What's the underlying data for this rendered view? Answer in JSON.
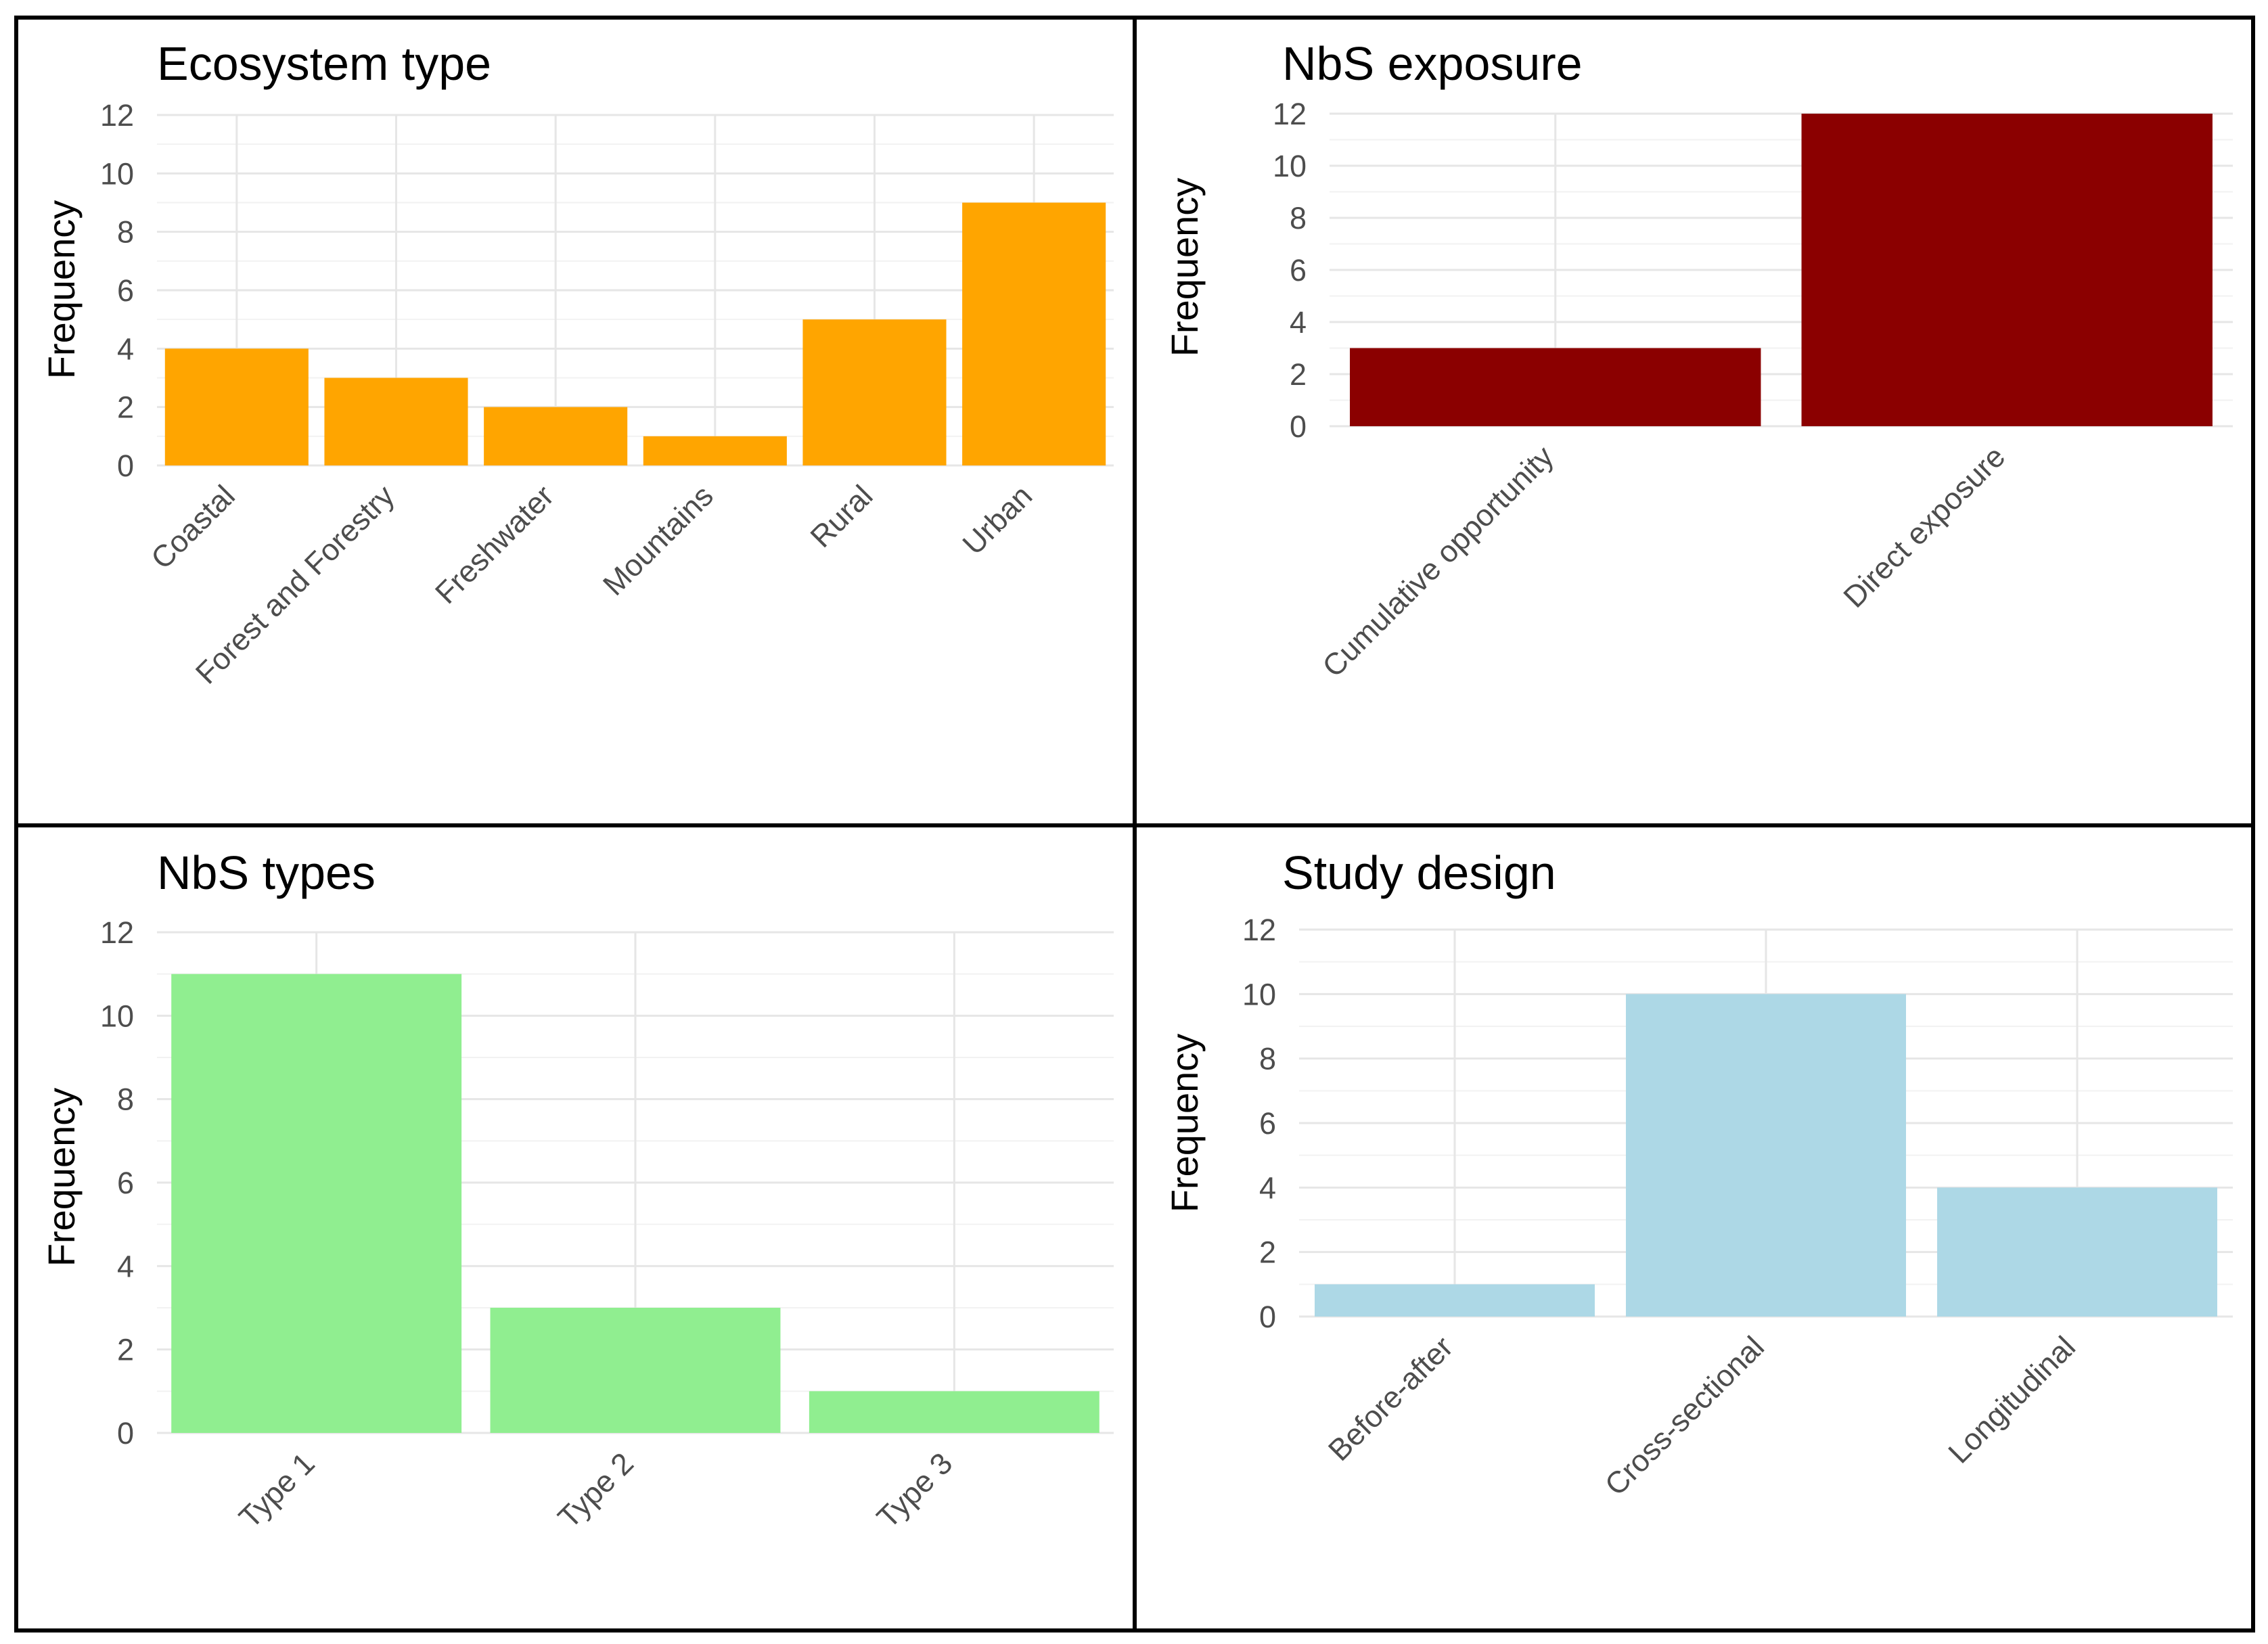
{
  "chart_data": [
    {
      "type": "bar",
      "title": "Ecosystem type",
      "xlabel": "",
      "ylabel": "Frequency",
      "ylim": [
        0,
        12
      ],
      "yticks": [
        0,
        2,
        4,
        6,
        8,
        10,
        12
      ],
      "categories": [
        "Coastal",
        "Forest and Forestry",
        "Freshwater",
        "Mountains",
        "Rural",
        "Urban"
      ],
      "values": [
        4,
        3,
        2,
        1,
        5,
        9
      ],
      "color": "#FFA500",
      "grid": true,
      "legend": "none"
    },
    {
      "type": "bar",
      "title": "NbS exposure",
      "xlabel": "",
      "ylabel": "Frequency",
      "ylim": [
        0,
        12
      ],
      "yticks": [
        0,
        2,
        4,
        6,
        8,
        10,
        12
      ],
      "categories": [
        "Cumulative opportunity",
        "Direct exposure"
      ],
      "values": [
        3,
        12
      ],
      "color": "#8B0000",
      "grid": true,
      "legend": "none"
    },
    {
      "type": "bar",
      "title": "NbS types",
      "xlabel": "",
      "ylabel": "Frequency",
      "ylim": [
        0,
        12
      ],
      "yticks": [
        0,
        2,
        4,
        6,
        8,
        10,
        12
      ],
      "categories": [
        "Type 1",
        "Type 2",
        "Type 3"
      ],
      "values": [
        11,
        3,
        1
      ],
      "color": "#90EE90",
      "grid": true,
      "legend": "none"
    },
    {
      "type": "bar",
      "title": "Study design",
      "xlabel": "",
      "ylabel": "Frequency",
      "ylim": [
        0,
        12
      ],
      "yticks": [
        0,
        2,
        4,
        6,
        8,
        10,
        12
      ],
      "categories": [
        "Before-after",
        "Cross-sectional",
        "Longitudinal"
      ],
      "values": [
        1,
        10,
        4
      ],
      "color": "#ADD8E6",
      "grid": true,
      "legend": "none"
    }
  ]
}
